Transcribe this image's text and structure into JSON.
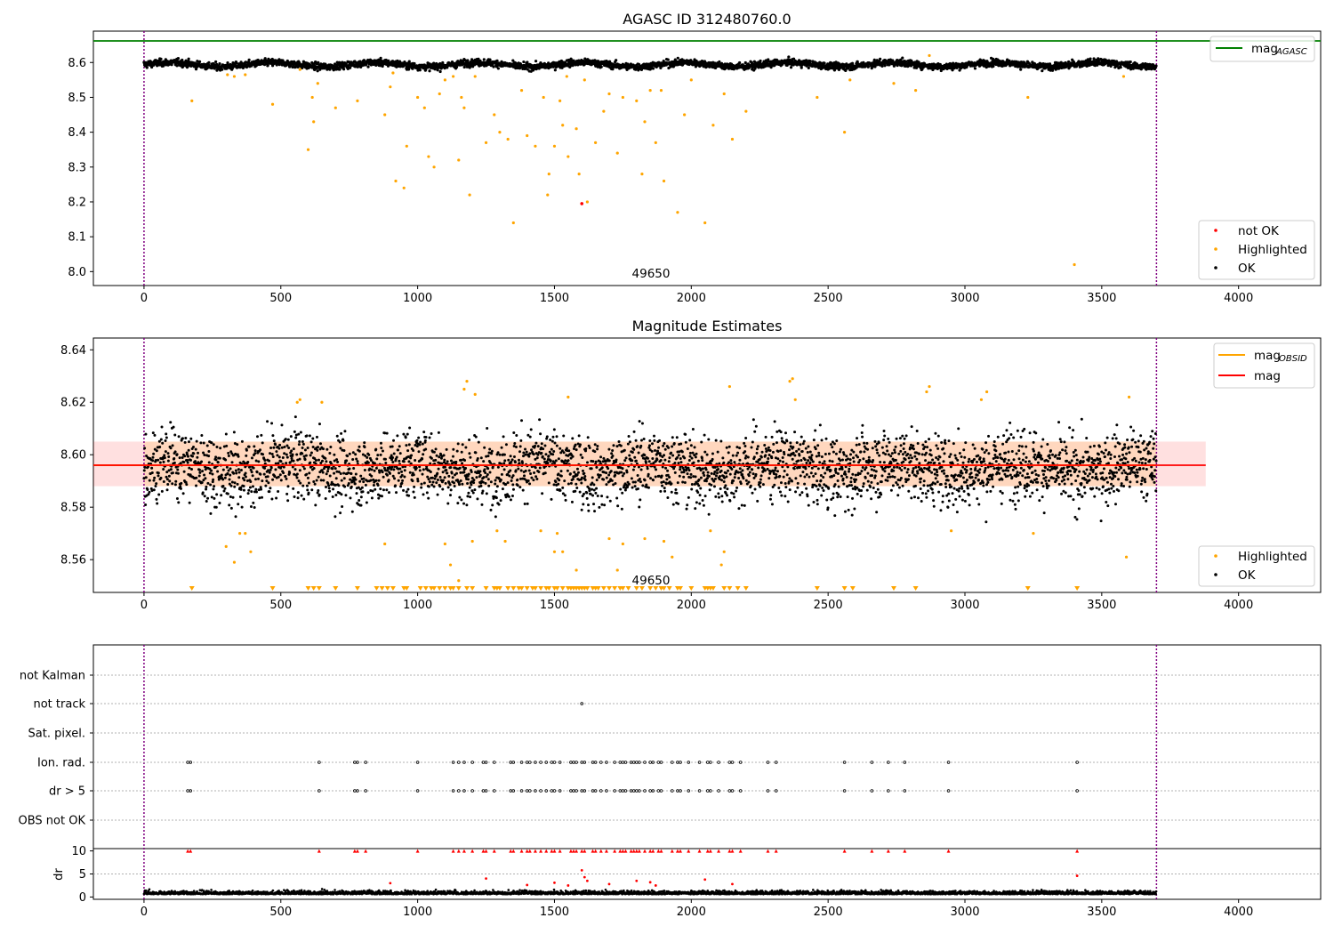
{
  "figure": {
    "title": "AGASC ID 312480760.0",
    "obsid_label": "49650",
    "x_ticks": [
      0,
      500,
      1000,
      1500,
      2000,
      2500,
      3000,
      3500,
      4000
    ],
    "xlim": [
      -185,
      4300
    ]
  },
  "chart_data": [
    {
      "type": "scatter",
      "title": "AGASC ID 312480760.0",
      "xlabel": "",
      "ylabel": "",
      "xlim": [
        -185,
        4300
      ],
      "ylim": [
        7.96,
        8.69
      ],
      "yticks": [
        "8.0",
        "8.1",
        "8.2",
        "8.3",
        "8.4",
        "8.5",
        "8.6"
      ],
      "grid": false,
      "annotation": "49650",
      "obs_bounds": [
        0,
        3700
      ],
      "mag_agasc": 8.662,
      "legend_top": {
        "placement": "top-right",
        "entries": [
          {
            "label_main": "mag",
            "label_sub": "AGASC",
            "color": "#008000"
          }
        ]
      },
      "legend_bottom": {
        "placement": "bottom-right",
        "entries": [
          {
            "label": "not OK",
            "color": "#ff0000"
          },
          {
            "label": "Highlighted",
            "color": "#ffa500"
          },
          {
            "label": "OK",
            "color": "#000000"
          }
        ]
      },
      "series": [
        {
          "name": "OK",
          "color": "#000000",
          "baseline": 8.594,
          "n_points": 3400
        },
        {
          "name": "Highlighted",
          "color": "#ffa500",
          "points": [
            [
              175,
              8.49
            ],
            [
              305,
              8.565
            ],
            [
              330,
              8.56
            ],
            [
              370,
              8.565
            ],
            [
              470,
              8.48
            ],
            [
              570,
              8.58
            ],
            [
              600,
              8.35
            ],
            [
              615,
              8.5
            ],
            [
              620,
              8.43
            ],
            [
              635,
              8.54
            ],
            [
              700,
              8.47
            ],
            [
              780,
              8.49
            ],
            [
              880,
              8.45
            ],
            [
              900,
              8.53
            ],
            [
              910,
              8.57
            ],
            [
              920,
              8.26
            ],
            [
              950,
              8.24
            ],
            [
              960,
              8.36
            ],
            [
              1000,
              8.5
            ],
            [
              1025,
              8.47
            ],
            [
              1040,
              8.33
            ],
            [
              1060,
              8.3
            ],
            [
              1080,
              8.51
            ],
            [
              1100,
              8.55
            ],
            [
              1130,
              8.56
            ],
            [
              1150,
              8.32
            ],
            [
              1160,
              8.5
            ],
            [
              1170,
              8.47
            ],
            [
              1190,
              8.22
            ],
            [
              1210,
              8.56
            ],
            [
              1250,
              8.37
            ],
            [
              1280,
              8.45
            ],
            [
              1300,
              8.4
            ],
            [
              1330,
              8.38
            ],
            [
              1350,
              8.14
            ],
            [
              1380,
              8.52
            ],
            [
              1400,
              8.39
            ],
            [
              1430,
              8.36
            ],
            [
              1460,
              8.5
            ],
            [
              1475,
              8.22
            ],
            [
              1480,
              8.28
            ],
            [
              1500,
              8.36
            ],
            [
              1520,
              8.49
            ],
            [
              1530,
              8.42
            ],
            [
              1545,
              8.56
            ],
            [
              1550,
              8.33
            ],
            [
              1580,
              8.41
            ],
            [
              1590,
              8.28
            ],
            [
              1610,
              8.55
            ],
            [
              1620,
              8.2
            ],
            [
              1650,
              8.37
            ],
            [
              1680,
              8.46
            ],
            [
              1700,
              8.51
            ],
            [
              1730,
              8.34
            ],
            [
              1750,
              8.5
            ],
            [
              1800,
              8.49
            ],
            [
              1820,
              8.28
            ],
            [
              1830,
              8.43
            ],
            [
              1850,
              8.52
            ],
            [
              1870,
              8.37
            ],
            [
              1890,
              8.52
            ],
            [
              1900,
              8.26
            ],
            [
              1950,
              8.17
            ],
            [
              1975,
              8.45
            ],
            [
              2000,
              8.55
            ],
            [
              2050,
              8.14
            ],
            [
              2080,
              8.42
            ],
            [
              2120,
              8.51
            ],
            [
              2150,
              8.38
            ],
            [
              2200,
              8.46
            ],
            [
              2460,
              8.5
            ],
            [
              2560,
              8.4
            ],
            [
              2580,
              8.55
            ],
            [
              2740,
              8.54
            ],
            [
              2820,
              8.52
            ],
            [
              2870,
              8.62
            ],
            [
              3230,
              8.5
            ],
            [
              3400,
              8.02
            ],
            [
              3580,
              8.56
            ]
          ]
        },
        {
          "name": "not OK",
          "color": "#ff0000",
          "points": [
            [
              1600,
              8.195
            ]
          ]
        }
      ]
    },
    {
      "type": "scatter",
      "title": "Magnitude Estimates",
      "xlabel": "",
      "ylabel": "",
      "xlim": [
        -185,
        4300
      ],
      "ylim": [
        8.5475,
        8.6445
      ],
      "yticks": [
        "8.56",
        "8.58",
        "8.60",
        "8.62",
        "8.64"
      ],
      "grid": false,
      "annotation": "49650",
      "mag": 8.596,
      "mag_obsid": 8.596,
      "band": [
        8.588,
        8.605
      ],
      "band_xmax": 3880,
      "legend_top": {
        "placement": "top-right",
        "entries": [
          {
            "label_main": "mag",
            "label_sub": "OBSID",
            "color": "#ffa500"
          },
          {
            "label_main": "mag",
            "label_sub": "",
            "color": "#ff0000"
          }
        ]
      },
      "legend_bottom": {
        "placement": "bottom-right",
        "entries": [
          {
            "label": "Highlighted",
            "color": "#ffa500"
          },
          {
            "label": "OK",
            "color": "#000000"
          }
        ]
      },
      "series": [
        {
          "name": "OK",
          "color": "#000000",
          "baseline": 8.595,
          "n_points": 3400
        },
        {
          "name": "Highlighted",
          "color": "#ffa500",
          "points": [
            [
              300,
              8.565
            ],
            [
              330,
              8.559
            ],
            [
              350,
              8.57
            ],
            [
              370,
              8.57
            ],
            [
              390,
              8.563
            ],
            [
              560,
              8.62
            ],
            [
              570,
              8.621
            ],
            [
              650,
              8.62
            ],
            [
              880,
              8.566
            ],
            [
              1100,
              8.566
            ],
            [
              1120,
              8.558
            ],
            [
              1150,
              8.552
            ],
            [
              1170,
              8.625
            ],
            [
              1180,
              8.628
            ],
            [
              1200,
              8.567
            ],
            [
              1210,
              8.623
            ],
            [
              1290,
              8.571
            ],
            [
              1320,
              8.567
            ],
            [
              1450,
              8.571
            ],
            [
              1500,
              8.563
            ],
            [
              1510,
              8.57
            ],
            [
              1530,
              8.563
            ],
            [
              1550,
              8.622
            ],
            [
              1580,
              8.556
            ],
            [
              1700,
              8.568
            ],
            [
              1730,
              8.556
            ],
            [
              1750,
              8.566
            ],
            [
              1830,
              8.568
            ],
            [
              1900,
              8.567
            ],
            [
              1930,
              8.561
            ],
            [
              2070,
              8.571
            ],
            [
              2110,
              8.558
            ],
            [
              2120,
              8.563
            ],
            [
              2140,
              8.626
            ],
            [
              2360,
              8.628
            ],
            [
              2370,
              8.629
            ],
            [
              2380,
              8.621
            ],
            [
              2860,
              8.624
            ],
            [
              2870,
              8.626
            ],
            [
              2950,
              8.571
            ],
            [
              3060,
              8.621
            ],
            [
              3080,
              8.624
            ],
            [
              3250,
              8.57
            ],
            [
              3590,
              8.561
            ],
            [
              3600,
              8.622
            ]
          ]
        }
      ],
      "below_range_markers": [
        175,
        470,
        600,
        620,
        640,
        700,
        780,
        850,
        870,
        890,
        910,
        950,
        960,
        1010,
        1030,
        1050,
        1060,
        1080,
        1100,
        1120,
        1130,
        1150,
        1180,
        1200,
        1250,
        1280,
        1290,
        1300,
        1330,
        1350,
        1370,
        1380,
        1400,
        1420,
        1430,
        1450,
        1470,
        1480,
        1500,
        1510,
        1530,
        1550,
        1560,
        1570,
        1580,
        1590,
        1600,
        1610,
        1620,
        1640,
        1650,
        1660,
        1680,
        1700,
        1720,
        1740,
        1750,
        1770,
        1800,
        1820,
        1850,
        1870,
        1890,
        1900,
        1920,
        1950,
        1960,
        2000,
        2050,
        2060,
        2070,
        2080,
        2120,
        2140,
        2170,
        2200,
        2460,
        2560,
        2590,
        2740,
        2820,
        3230,
        3410
      ]
    },
    {
      "type": "scatter",
      "title": "",
      "xlabel": "",
      "ylabel": "",
      "xlim": [
        -185,
        4300
      ],
      "grid": true,
      "obs_bounds": [
        0,
        3700
      ],
      "flag_rows": [
        "not Kalman",
        "not track",
        "Sat. pixel.",
        "Ion. rad.",
        "dr > 5",
        "OBS not OK"
      ],
      "flag_points": {
        "not track": [
          1600
        ],
        "Ion. rad.": [
          160,
          170,
          640,
          770,
          780,
          810,
          1000,
          1130,
          1150,
          1170,
          1200,
          1240,
          1250,
          1280,
          1340,
          1350,
          1380,
          1400,
          1410,
          1430,
          1450,
          1470,
          1490,
          1500,
          1520,
          1560,
          1570,
          1580,
          1600,
          1610,
          1640,
          1650,
          1670,
          1690,
          1720,
          1740,
          1750,
          1760,
          1780,
          1790,
          1800,
          1810,
          1830,
          1850,
          1860,
          1880,
          1890,
          1930,
          1950,
          1960,
          1990,
          2030,
          2060,
          2070,
          2100,
          2140,
          2150,
          2180,
          2280,
          2310,
          2560,
          2660,
          2720,
          2780,
          2940,
          3410
        ],
        "dr > 5": [
          160,
          170,
          640,
          770,
          780,
          810,
          1000,
          1130,
          1150,
          1170,
          1200,
          1240,
          1250,
          1280,
          1340,
          1350,
          1380,
          1400,
          1410,
          1430,
          1450,
          1470,
          1490,
          1500,
          1520,
          1560,
          1570,
          1580,
          1600,
          1610,
          1640,
          1650,
          1670,
          1690,
          1720,
          1740,
          1750,
          1760,
          1780,
          1790,
          1800,
          1810,
          1830,
          1850,
          1860,
          1880,
          1890,
          1930,
          1950,
          1960,
          1990,
          2030,
          2060,
          2070,
          2100,
          2140,
          2150,
          2180,
          2280,
          2310,
          2560,
          2660,
          2720,
          2780,
          2940,
          3410
        ]
      }
    },
    {
      "type": "scatter",
      "title": "",
      "xlabel": "",
      "ylabel": "dr",
      "xlim": [
        -185,
        4300
      ],
      "ylim": [
        -0.5,
        10.5
      ],
      "yticks": [
        "0",
        "5",
        "10"
      ],
      "grid": false,
      "series": [
        {
          "name": "OK",
          "color": "#000000",
          "baseline": 0.6,
          "n_points": 3400
        },
        {
          "name": "not OK",
          "color": "#ff0000",
          "points": [
            [
              900,
              3
            ],
            [
              1250,
              4
            ],
            [
              1400,
              2.6
            ],
            [
              1500,
              3.1
            ],
            [
              1550,
              2.5
            ],
            [
              1600,
              5.8
            ],
            [
              1610,
              4.3
            ],
            [
              1620,
              3.5
            ],
            [
              1700,
              2.8
            ],
            [
              1800,
              3.5
            ],
            [
              1850,
              3.2
            ],
            [
              1870,
              2.5
            ],
            [
              2050,
              3.8
            ],
            [
              2150,
              2.8
            ],
            [
              3410,
              4.6
            ]
          ]
        }
      ],
      "red_caps_x": [
        160,
        170,
        640,
        770,
        780,
        810,
        1000,
        1130,
        1150,
        1170,
        1200,
        1240,
        1250,
        1280,
        1340,
        1350,
        1380,
        1400,
        1410,
        1430,
        1450,
        1470,
        1490,
        1500,
        1520,
        1560,
        1570,
        1580,
        1600,
        1610,
        1640,
        1650,
        1670,
        1690,
        1720,
        1740,
        1750,
        1760,
        1780,
        1790,
        1800,
        1810,
        1830,
        1850,
        1860,
        1880,
        1890,
        1930,
        1950,
        1960,
        1990,
        2030,
        2060,
        2070,
        2100,
        2140,
        2150,
        2180,
        2280,
        2310,
        2560,
        2660,
        2720,
        2780,
        2940,
        3410
      ]
    }
  ]
}
